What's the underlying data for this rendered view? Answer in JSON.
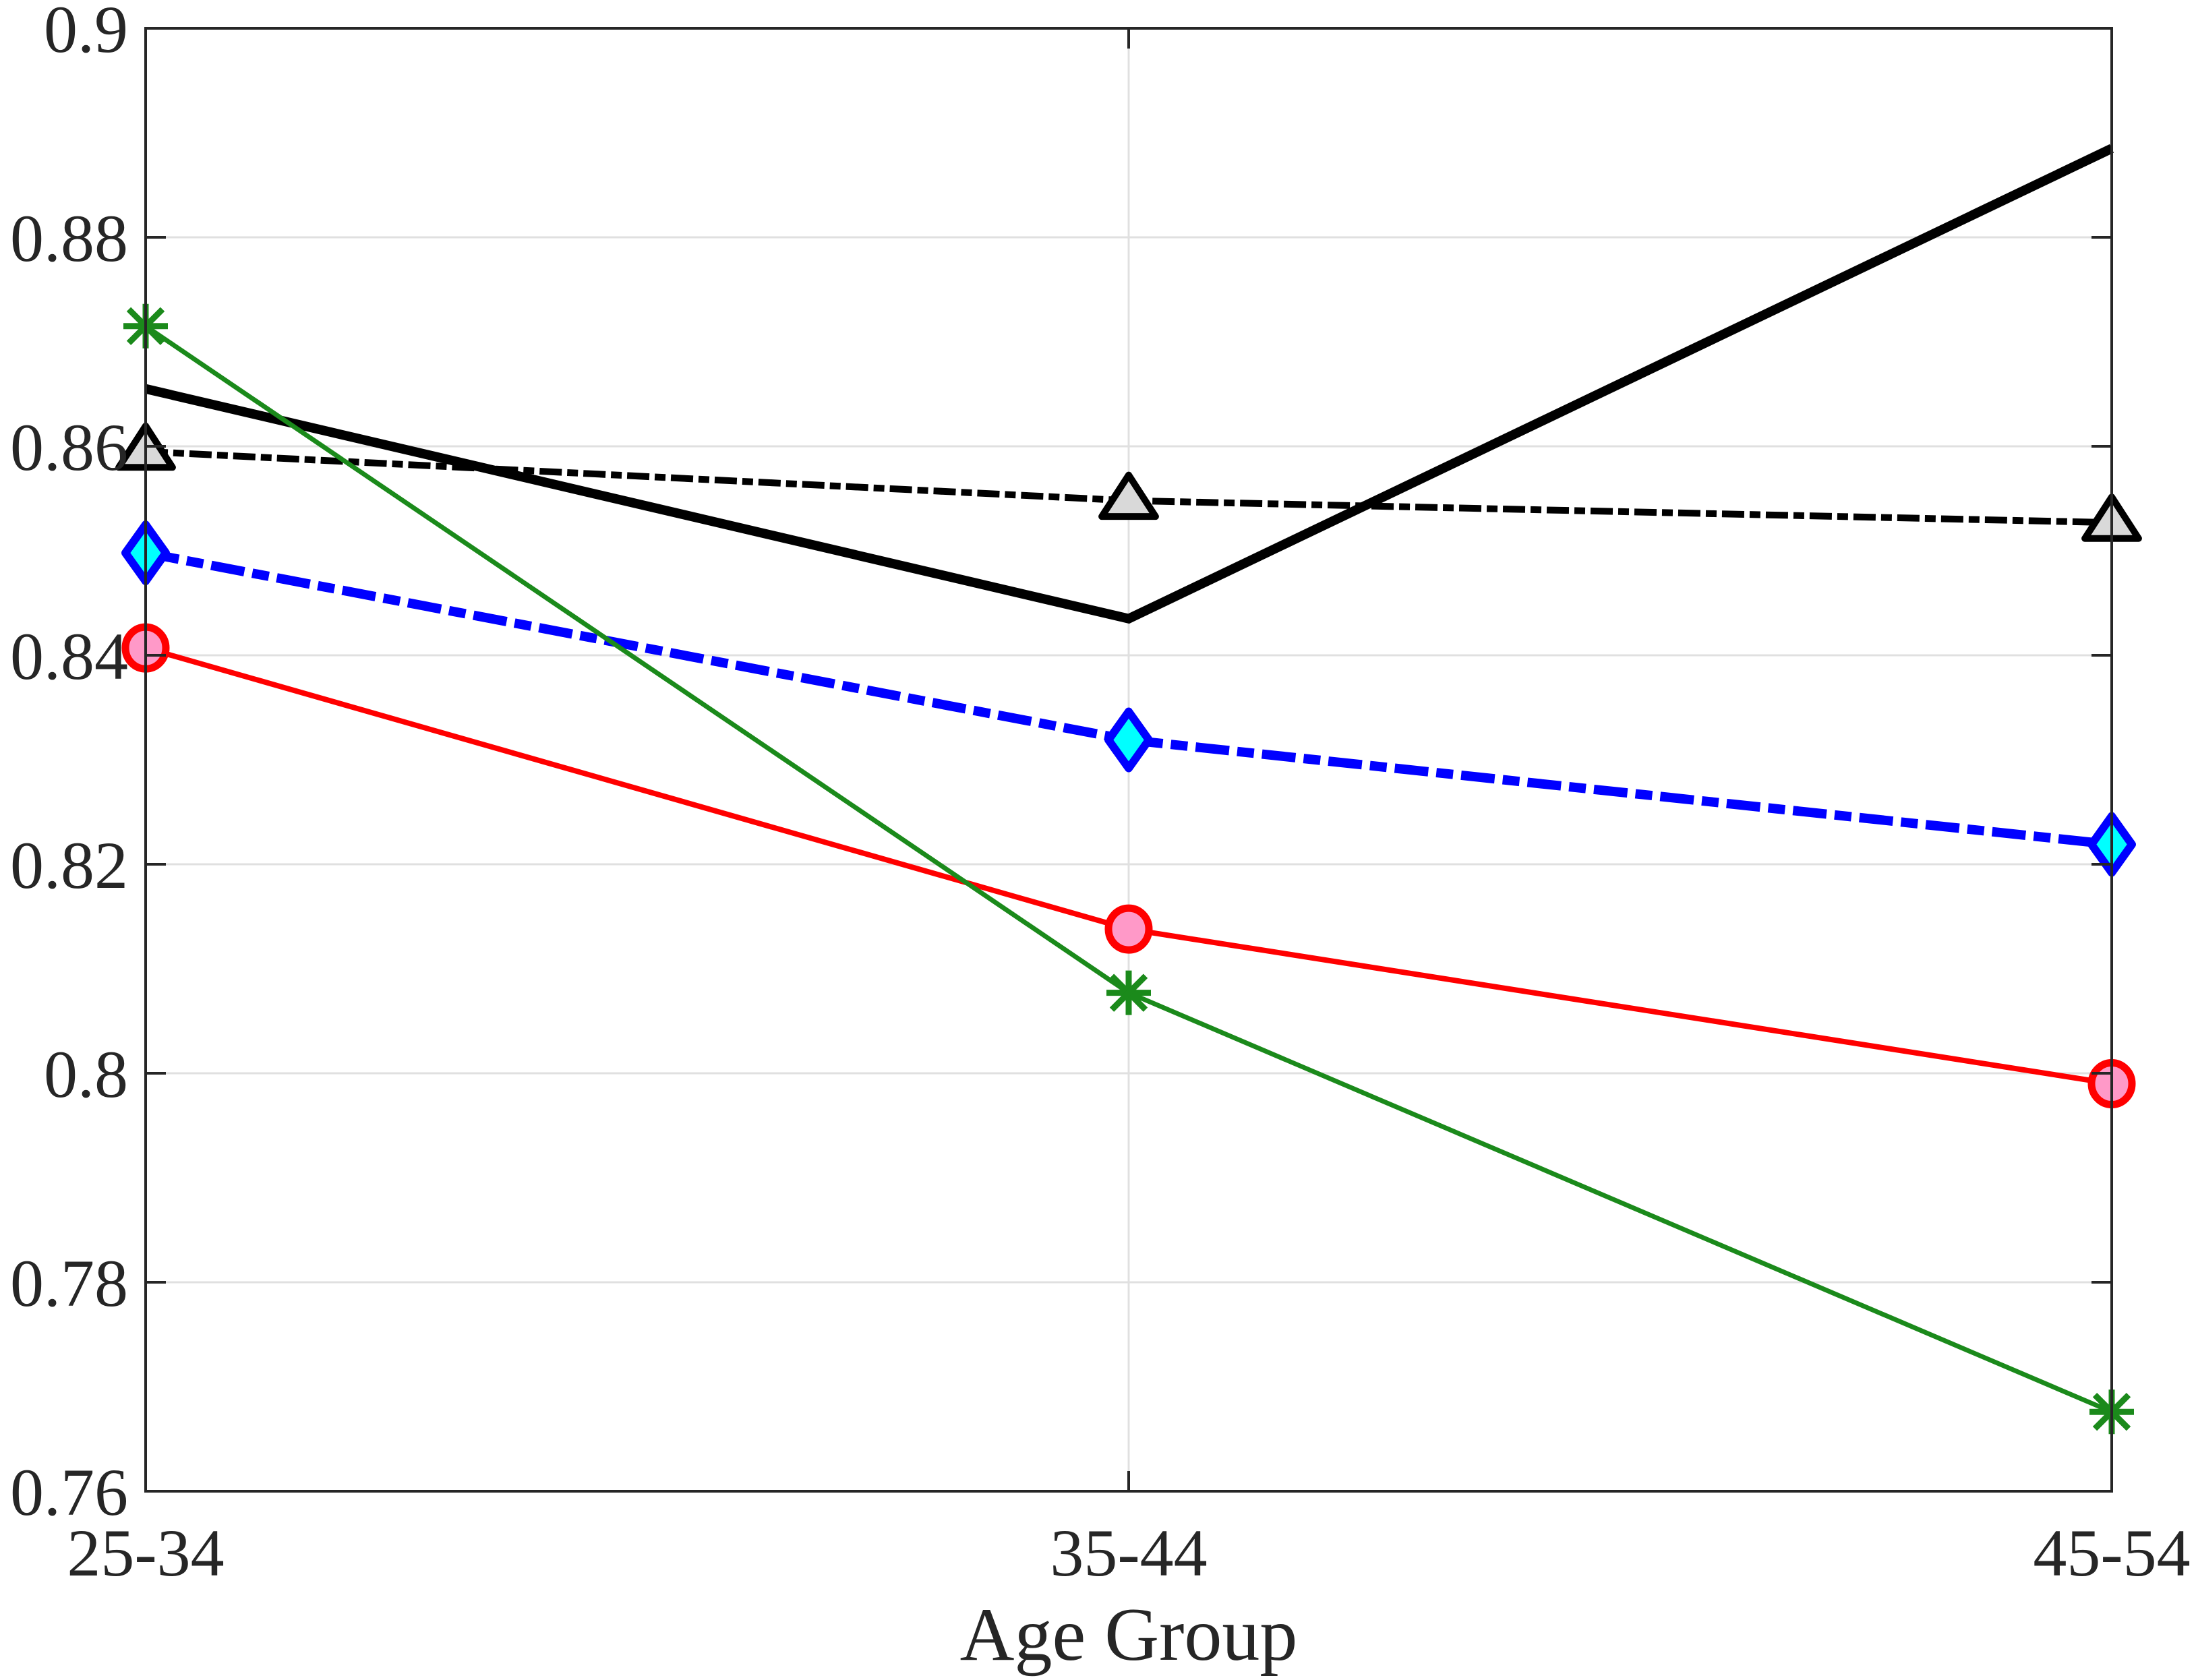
{
  "chart_data": {
    "type": "line",
    "title": "",
    "xlabel": "Age Group",
    "ylabel": "",
    "categories": [
      "25-34",
      "35-44",
      "45-54"
    ],
    "ylim": [
      0.76,
      0.9
    ],
    "yticks": [
      0.76,
      0.78,
      0.8,
      0.82,
      0.84,
      0.86,
      0.88,
      0.9
    ],
    "ytick_labels": [
      "0.76",
      "0.78",
      "0.8",
      "0.82",
      "0.84",
      "0.86",
      "0.88",
      "0.9"
    ],
    "grid": true,
    "legend": null,
    "series": [
      {
        "name": "series-black-solid",
        "values": [
          0.8655,
          0.8435,
          0.8885
        ],
        "color": "#000000",
        "line_style": "solid",
        "line_width": 14,
        "marker": "none",
        "marker_fill": null
      },
      {
        "name": "series-black-dashdot-triangle",
        "values": [
          0.8595,
          0.8548,
          0.8527
        ],
        "color": "#000000",
        "line_style": "dashdot",
        "line_width": 10,
        "marker": "triangle",
        "marker_fill": "#d9d9d9"
      },
      {
        "name": "series-blue-dashdot-diamond",
        "values": [
          0.8498,
          0.8319,
          0.8219
        ],
        "color": "#0000ff",
        "line_style": "dashdot",
        "line_width": 14,
        "marker": "diamond",
        "marker_fill": "#00ffff"
      },
      {
        "name": "series-red-circle",
        "values": [
          0.8407,
          0.8138,
          0.799
        ],
        "color": "#ff0000",
        "line_style": "solid",
        "line_width": 8,
        "marker": "circle",
        "marker_fill": "#ff99c8"
      },
      {
        "name": "series-green-asterisk",
        "values": [
          0.8715,
          0.8077,
          0.7676
        ],
        "color": "#1b8a1b",
        "line_style": "solid",
        "line_width": 7,
        "marker": "asterisk",
        "marker_fill": null
      }
    ]
  },
  "axes": {
    "xlabel": "Age Group",
    "xtick_labels": [
      "25-34",
      "35-44",
      "45-54"
    ],
    "ytick_labels": [
      "0.9",
      "0.88",
      "0.86",
      "0.84",
      "0.82",
      "0.8",
      "0.78",
      "0.76"
    ]
  }
}
